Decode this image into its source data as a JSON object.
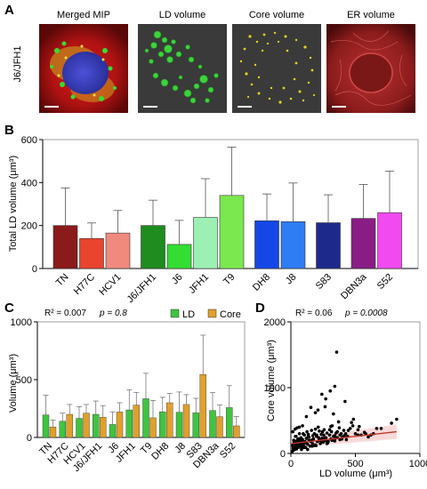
{
  "panel_a": {
    "label": "A",
    "row_label": "J6/JFH1",
    "titles": [
      "Merged MIP",
      "LD volume",
      "Core volume",
      "ER volume"
    ]
  },
  "panel_b": {
    "label": "B",
    "ylabel": "Total LD volume (μm³)"
  },
  "panel_c": {
    "label": "C",
    "ylabel": "Volume (μm³)",
    "stat_r2": "R² = 0.007",
    "stat_p": "p = 0.8"
  },
  "panel_d": {
    "label": "D",
    "ylabel": "Core volume (μm³)",
    "xlabel": "LD volume (μm³)",
    "stat_r2": "R² = 0.06",
    "stat_p": "p = 0.0008"
  },
  "colors": {
    "TN": "#8b1a1a",
    "H77C": "#e8442e",
    "HCV1": "#f08a7e",
    "J6/JFH1": "#1e8c1e",
    "J6": "#33dd33",
    "JFH1": "#9cf0b4",
    "T9": "#7be84f",
    "DH8": "#1447e6",
    "J8": "#2f7df5",
    "S83": "#1d2a8c",
    "DBN3a": "#8a1c86",
    "S52": "#f04af0",
    "LD": "#3fc43f",
    "Core": "#e0a02a",
    "D_points": "#000000",
    "D_fit": "#c0392b"
  },
  "chart_data": [
    {
      "type": "bar",
      "panel": "B",
      "categories": [
        "TN",
        "H77C",
        "HCV1",
        "J6/JFH1",
        "J6",
        "JFH1",
        "T9",
        "DH8",
        "J8",
        "S83",
        "DBN3a",
        "S52"
      ],
      "values": [
        200,
        140,
        165,
        200,
        112,
        238,
        340,
        222,
        218,
        213,
        233,
        260
      ],
      "errors": [
        175,
        72,
        105,
        118,
        112,
        180,
        225,
        125,
        180,
        130,
        158,
        193
      ],
      "ylim": [
        0,
        600
      ],
      "yticks": [
        0,
        200,
        400,
        600
      ]
    },
    {
      "type": "bar",
      "panel": "C",
      "categories": [
        "TN",
        "H77C",
        "HCV1",
        "J6/JFH1",
        "J6",
        "JFH1",
        "T9",
        "DH8",
        "J8",
        "S83",
        "DBN3a",
        "S52"
      ],
      "series": [
        {
          "name": "LD",
          "values": [
            195,
            140,
            165,
            200,
            112,
            238,
            335,
            222,
            218,
            213,
            233,
            258
          ],
          "errors": [
            170,
            70,
            100,
            115,
            110,
            175,
            220,
            125,
            175,
            125,
            155,
            190
          ]
        },
        {
          "name": "Core",
          "values": [
            90,
            200,
            210,
            175,
            220,
            280,
            170,
            300,
            285,
            545,
            180,
            100
          ],
          "errors": [
            60,
            85,
            75,
            100,
            80,
            110,
            150,
            80,
            85,
            340,
            100,
            80
          ]
        }
      ],
      "ylim": [
        0,
        1000
      ],
      "yticks": [
        0,
        500,
        1000
      ]
    },
    {
      "type": "scatter",
      "panel": "D",
      "x": [
        12,
        18,
        22,
        26,
        30,
        35,
        38,
        42,
        45,
        50,
        55,
        58,
        62,
        66,
        70,
        74,
        78,
        82,
        86,
        90,
        95,
        100,
        105,
        110,
        115,
        120,
        125,
        130,
        135,
        140,
        148,
        155,
        160,
        168,
        175,
        182,
        190,
        198,
        205,
        212,
        220,
        228,
        235,
        242,
        250,
        258,
        265,
        272,
        280,
        290,
        300,
        310,
        320,
        330,
        340,
        350,
        360,
        370,
        380,
        395,
        410,
        425,
        440,
        460,
        480,
        500,
        520,
        545,
        570,
        600,
        640,
        700,
        780,
        820,
        30,
        45,
        60,
        80,
        100,
        120,
        140,
        160,
        180,
        200,
        220,
        240,
        260,
        280,
        300,
        320,
        340,
        360,
        380,
        400,
        20,
        50,
        75,
        95,
        130,
        150,
        170,
        195,
        215,
        245,
        275,
        310,
        350,
        390,
        430,
        470,
        520,
        10,
        25,
        40,
        55,
        70,
        85,
        110,
        135,
        165,
        190,
        225,
        255,
        285,
        315,
        345,
        375,
        415,
        445,
        485,
        530,
        580,
        620,
        665,
        355,
        340,
        305,
        210,
        155,
        120,
        90,
        65,
        48,
        33,
        15,
        240,
        265,
        190,
        330,
        270,
        420
      ],
      "y": [
        120,
        80,
        200,
        150,
        90,
        260,
        110,
        180,
        70,
        140,
        220,
        160,
        95,
        300,
        130,
        175,
        240,
        60,
        190,
        210,
        150,
        120,
        280,
        170,
        90,
        230,
        330,
        140,
        260,
        200,
        110,
        180,
        350,
        150,
        220,
        300,
        130,
        260,
        180,
        400,
        210,
        150,
        290,
        230,
        170,
        360,
        200,
        240,
        310,
        180,
        280,
        220,
        420,
        260,
        190,
        310,
        240,
        480,
        280,
        220,
        350,
        300,
        260,
        380,
        420,
        300,
        360,
        280,
        320,
        250,
        300,
        380,
        460,
        520,
        60,
        110,
        170,
        230,
        90,
        160,
        250,
        200,
        120,
        280,
        340,
        180,
        230,
        150,
        360,
        200,
        270,
        330,
        210,
        250,
        50,
        200,
        140,
        300,
        60,
        190,
        270,
        120,
        240,
        330,
        190,
        410,
        240,
        300,
        210,
        470,
        280,
        30,
        170,
        260,
        130,
        220,
        100,
        180,
        290,
        110,
        370,
        200,
        280,
        160,
        330,
        230,
        390,
        270,
        350,
        520,
        410,
        300,
        280,
        380,
        1540,
        1020,
        950,
        660,
        700,
        560,
        420,
        400,
        390,
        370,
        330,
        900,
        710,
        620,
        600,
        830,
        790
      ],
      "xlim": [
        0,
        1000
      ],
      "ylim": [
        0,
        2000
      ],
      "xticks": [
        0,
        500,
        1000
      ],
      "yticks": [
        0,
        1000,
        2000
      ],
      "fit": {
        "x": [
          0,
          820
        ],
        "y": [
          150,
          330
        ]
      }
    }
  ]
}
